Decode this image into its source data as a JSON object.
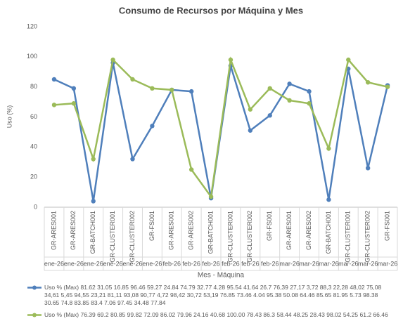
{
  "chart_data": {
    "type": "line",
    "title": "Consumo de Recursos por Máquina y Mes",
    "ylabel": "Uso (%)",
    "xlabel": "Mes - Máquina",
    "categories": [
      "GR-ARES001",
      "GR-ARES002",
      "GR-BATCH001",
      "GR-CLUSTER001",
      "GR-CLUSTER002",
      "GR-FS001",
      "GR-ARES001",
      "GR-ARES002",
      "GR-BATCH001",
      "GR-CLUSTER001",
      "GR-CLUSTER002",
      "GR-FS001",
      "GR-ARES001",
      "GR-ARES002",
      "GR-BATCH001",
      "GR-CLUSTER001",
      "GR-CLUSTER002",
      "GR-FS001"
    ],
    "category_groups": [
      "ene-26",
      "ene-26",
      "ene-26",
      "ene-26",
      "ene-26",
      "ene-26",
      "feb-26",
      "feb-26",
      "feb-26",
      "feb-26",
      "feb-26",
      "feb-26",
      "mar-26",
      "mar-26",
      "mar-26",
      "mar-26",
      "mar-26",
      "mar-26"
    ],
    "series": [
      {
        "name": "Uso % (Max) 81.62 31.05 16.85 96.46 59.27 24.84 74.79 32.77 4.28 95.54 41.64 26.7 76,39 27,17 3,72 88,3 22,28 48,02 75,08 34,61 5,45 94,55 23,21 81,11 93,08 90,77 4,72 98,42 30,72 53,19 76.85 73.46 4.04 95.38 50.08 64.46 85.65 81.95 5.73 98.38 30.65 74.8 83.85 83.4 7.06 97.45 34.48 77.84",
        "color": "#4f7fbb",
        "values": [
          85,
          79,
          4,
          96,
          32,
          54,
          78,
          77,
          6,
          94,
          51,
          61,
          82,
          77,
          5,
          92,
          26,
          81
        ]
      },
      {
        "name": "Uso % (Max) 76.39 69.2 80.85 99.82 72.09 86.02 79.96 24.16 40.68 100.00 78.43 86.3 58.44 48.25 28.43 98.02 54.25 61.2 66.46",
        "color": "#9bbb59",
        "values": [
          68,
          69,
          32,
          98,
          85,
          79,
          78,
          25,
          7,
          98,
          65,
          79,
          71,
          69,
          39,
          98,
          83,
          80
        ]
      }
    ],
    "ylim": [
      0,
      120
    ],
    "yticks": [
      0,
      20,
      40,
      60,
      80,
      100,
      120
    ],
    "grid": false
  }
}
